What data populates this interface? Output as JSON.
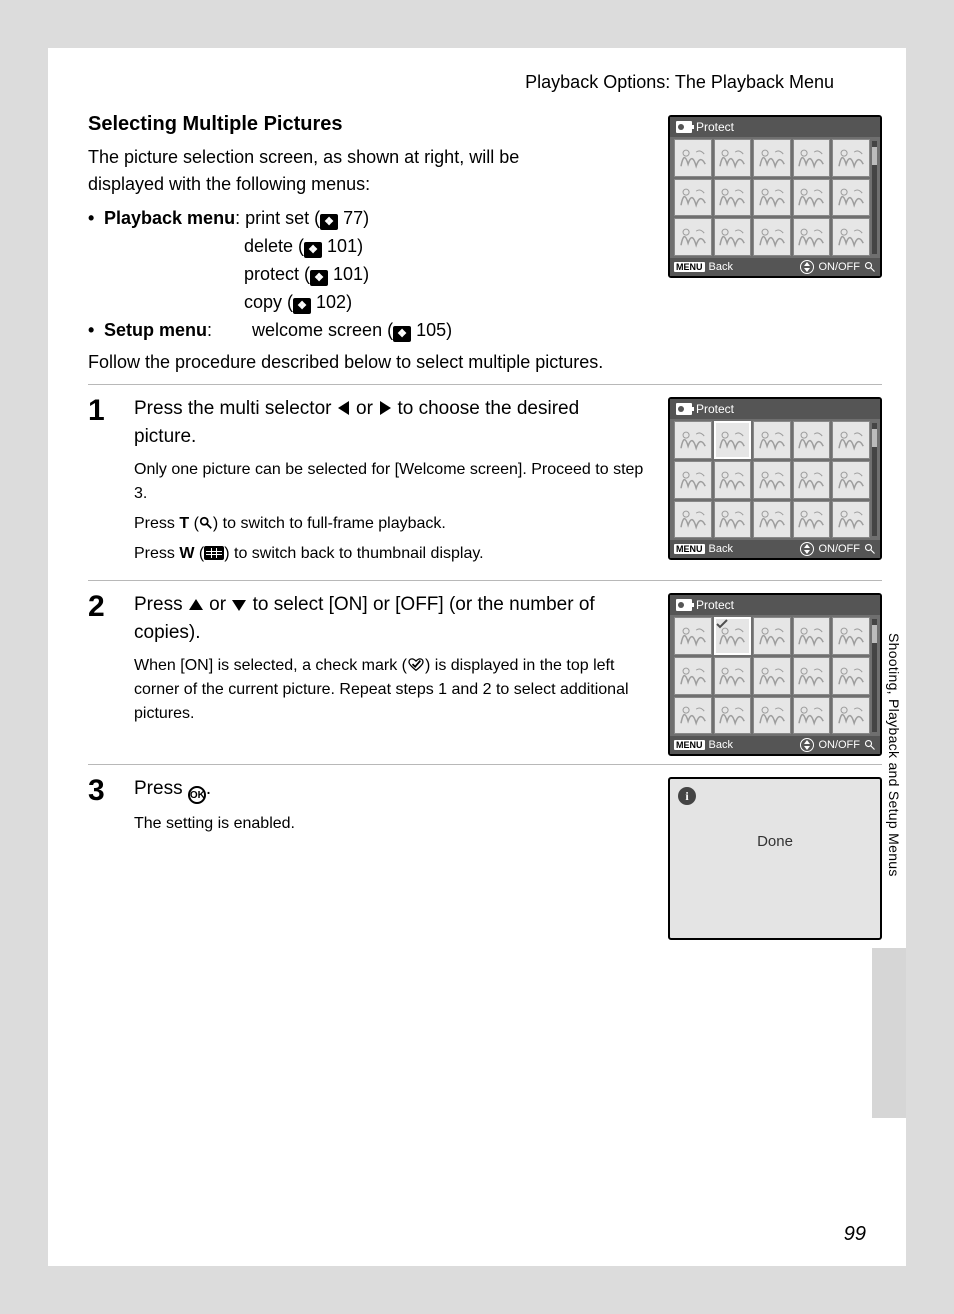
{
  "page": {
    "header_title": "Playback Options: The Playback Menu",
    "section_heading": "Selecting Multiple Pictures",
    "intro_line1": "The picture selection screen, as shown at right, will be",
    "intro_line2": "displayed with the following menus:",
    "bullet1_label": "Playback menu",
    "bullet1_item1_pre": " print set (",
    "bullet1_item1_num": " 77)",
    "bullet1_item2_pre": "delete (",
    "bullet1_item2_num": " 101)",
    "bullet1_item3_pre": "protect (",
    "bullet1_item3_num": " 101)",
    "bullet1_item4_pre": "copy (",
    "bullet1_item4_num": " 102)",
    "bullet2_label": "Setup menu",
    "bullet2_item_pre": "welcome screen (",
    "bullet2_item_num": " 105)",
    "follow_text": "Follow the procedure described below to select multiple pictures.",
    "side_label": "Shooting, Playback and Setup Menus",
    "page_number": "99"
  },
  "steps": {
    "s1": {
      "num": "1",
      "title_pre": "Press the multi selector ",
      "title_mid": " or ",
      "title_post": " to choose the desired picture.",
      "sub1": "Only one picture can be selected for [Welcome screen]. Proceed to step 3.",
      "sub2_pre": "Press ",
      "sub2_T": "T",
      "sub2_post": ") to switch to full-frame playback.",
      "sub3_pre": "Press ",
      "sub3_W": "W",
      "sub3_post": ") to switch back to thumbnail display."
    },
    "s2": {
      "num": "2",
      "title_pre": "Press ",
      "title_mid": " or ",
      "title_post": " to select [ON] or [OFF] (or the number of copies).",
      "sub1_pre": "When [ON] is selected, a check mark (",
      "sub1_post": ") is displayed in the top left corner of the current picture. Repeat steps 1 and 2 to select additional pictures."
    },
    "s3": {
      "num": "3",
      "title_pre": "Press ",
      "title_post": ".",
      "sub1": "The setting is enabled."
    }
  },
  "cam": {
    "title": "Protect",
    "menu": "MENU",
    "back": "Back",
    "onoff": "ON/OFF",
    "done": "Done",
    "info": "i"
  },
  "colors": {
    "page_bg": "#dcdcdc",
    "cam_bg": "#6f6f6f",
    "cam_bar": "#555555",
    "thumb_bg": "#e6e6e6",
    "done_bg": "#e4e4e4"
  }
}
